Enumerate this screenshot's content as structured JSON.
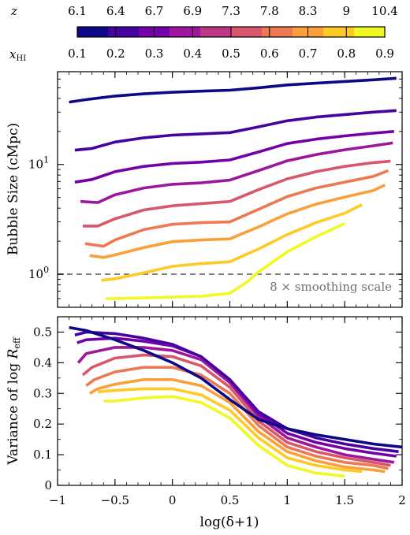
{
  "colorbar": {
    "z_symbol": "z",
    "xhi_symbol": "x",
    "xhi_sub": "HI",
    "z_ticks": [
      "6.1",
      "6.4",
      "6.7",
      "6.9",
      "7.3",
      "7.8",
      "8.3",
      "9",
      "10.4"
    ],
    "xhi_ticks": [
      "0.1",
      "0.2",
      "0.3",
      "0.4",
      "0.5",
      "0.6",
      "0.7",
      "0.8",
      "0.9"
    ],
    "colors": [
      "#0d0887",
      "#46039f",
      "#7201a8",
      "#9c179e",
      "#bd3786",
      "#d8576b",
      "#ed7953",
      "#fb9f3a",
      "#fdca26",
      "#f0f921"
    ]
  },
  "chart_data": [
    {
      "type": "line",
      "panel": "top",
      "ylabel": "Bubble Size (cMpc)",
      "yscale": "log",
      "ylim": [
        0.5,
        70
      ],
      "xlim": [
        -1,
        2
      ],
      "y_ticks": [
        {
          "base": "10",
          "exp": "0",
          "value": 1
        },
        {
          "base": "10",
          "exp": "1",
          "value": 10
        }
      ],
      "reference_line": {
        "y": 1.0,
        "style": "dashed",
        "color": "#808080",
        "label": "8 × smoothing scale"
      },
      "series": [
        {
          "xhi": 0.1,
          "z": "6.1",
          "x": [
            -0.9,
            -0.75,
            -0.5,
            -0.25,
            0,
            0.25,
            0.5,
            0.75,
            1.0,
            1.25,
            1.5,
            1.75,
            1.95
          ],
          "y": [
            37,
            39,
            42,
            44,
            45.5,
            46.5,
            47.5,
            50,
            53,
            55,
            57,
            59,
            61
          ]
        },
        {
          "xhi": 0.2,
          "z": "6.4",
          "x": [
            -0.85,
            -0.7,
            -0.5,
            -0.25,
            0,
            0.25,
            0.5,
            0.75,
            1.0,
            1.25,
            1.5,
            1.75,
            1.95
          ],
          "y": [
            13.5,
            14,
            16,
            17.5,
            18.5,
            19,
            19.5,
            22,
            25,
            27,
            28.5,
            30,
            31
          ]
        },
        {
          "xhi": 0.3,
          "z": "6.7",
          "x": [
            -0.85,
            -0.7,
            -0.5,
            -0.25,
            0,
            0.25,
            0.5,
            0.75,
            1.0,
            1.25,
            1.5,
            1.75,
            1.93
          ],
          "y": [
            6.9,
            7.3,
            8.6,
            9.6,
            10.2,
            10.5,
            11,
            13,
            15.5,
            17,
            18.2,
            19.3,
            20
          ]
        },
        {
          "xhi": 0.4,
          "z": "6.9",
          "x": [
            -0.8,
            -0.65,
            -0.5,
            -0.25,
            0,
            0.25,
            0.5,
            0.75,
            1.0,
            1.25,
            1.5,
            1.75,
            1.92
          ],
          "y": [
            4.6,
            4.5,
            5.3,
            6.1,
            6.6,
            6.8,
            7.2,
            8.8,
            10.8,
            12.3,
            13.6,
            14.8,
            15.7
          ]
        },
        {
          "xhi": 0.5,
          "z": "7.3",
          "x": [
            -0.78,
            -0.65,
            -0.5,
            -0.25,
            0,
            0.25,
            0.5,
            0.75,
            1.0,
            1.25,
            1.5,
            1.75,
            1.9
          ],
          "y": [
            2.75,
            2.75,
            3.2,
            3.85,
            4.2,
            4.4,
            4.6,
            5.9,
            7.4,
            8.6,
            9.6,
            10.4,
            10.7
          ]
        },
        {
          "xhi": 0.6,
          "z": "7.8",
          "x": [
            -0.76,
            -0.6,
            -0.5,
            -0.25,
            0,
            0.25,
            0.5,
            0.75,
            1.0,
            1.25,
            1.5,
            1.75,
            1.88
          ],
          "y": [
            1.9,
            1.8,
            2.05,
            2.55,
            2.85,
            2.95,
            3.0,
            3.9,
            5.1,
            6.1,
            6.9,
            7.8,
            8.8
          ]
        },
        {
          "xhi": 0.7,
          "z": "8.3",
          "x": [
            -0.72,
            -0.6,
            -0.5,
            -0.25,
            0,
            0.25,
            0.5,
            0.75,
            1.0,
            1.25,
            1.5,
            1.75,
            1.85
          ],
          "y": [
            1.48,
            1.42,
            1.5,
            1.75,
            1.98,
            2.05,
            2.1,
            2.7,
            3.55,
            4.35,
            5.05,
            5.8,
            6.5
          ]
        },
        {
          "xhi": 0.8,
          "z": "9",
          "x": [
            -0.62,
            -0.5,
            -0.25,
            0,
            0.25,
            0.5,
            0.75,
            1.0,
            1.25,
            1.5,
            1.65
          ],
          "y": [
            0.88,
            0.91,
            1.03,
            1.18,
            1.25,
            1.3,
            1.7,
            2.3,
            2.95,
            3.6,
            4.3
          ]
        },
        {
          "xhi": 0.9,
          "z": "10.4",
          "x": [
            -0.58,
            -0.5,
            -0.25,
            0,
            0.25,
            0.5,
            0.65,
            0.75,
            1.0,
            1.25,
            1.5
          ],
          "y": [
            0.6,
            0.6,
            0.61,
            0.62,
            0.63,
            0.67,
            0.85,
            1.05,
            1.6,
            2.2,
            2.9
          ]
        }
      ]
    },
    {
      "type": "line",
      "panel": "bottom",
      "ylabel_prefix": "Variance of log",
      "ylabel_symbol": "R",
      "ylabel_sub": "eff",
      "xlabel": "log(δ+1)",
      "ylim": [
        0,
        0.55
      ],
      "xlim": [
        -1,
        2
      ],
      "y_ticks": [
        "0",
        "0.1",
        "0.2",
        "0.3",
        "0.4",
        "0.5"
      ],
      "x_ticks": [
        "−1",
        "−0.5",
        "0",
        "0.5",
        "1",
        "1.5",
        "2"
      ],
      "series": [
        {
          "xhi": 0.1,
          "z": "6.1",
          "x": [
            -0.9,
            -0.75,
            -0.5,
            -0.25,
            0,
            0.25,
            0.5,
            0.75,
            1.0,
            1.25,
            1.5,
            1.75,
            2.0
          ],
          "y": [
            0.515,
            0.505,
            0.475,
            0.44,
            0.4,
            0.35,
            0.28,
            0.215,
            0.185,
            0.165,
            0.15,
            0.135,
            0.125
          ]
        },
        {
          "xhi": 0.2,
          "z": "6.4",
          "x": [
            -0.85,
            -0.75,
            -0.5,
            -0.25,
            0,
            0.25,
            0.5,
            0.75,
            1.0,
            1.25,
            1.5,
            1.75,
            1.97
          ],
          "y": [
            0.49,
            0.5,
            0.495,
            0.48,
            0.46,
            0.42,
            0.345,
            0.24,
            0.185,
            0.155,
            0.135,
            0.12,
            0.11
          ]
        },
        {
          "xhi": 0.3,
          "z": "6.7",
          "x": [
            -0.83,
            -0.75,
            -0.5,
            -0.25,
            0,
            0.25,
            0.5,
            0.75,
            1.0,
            1.25,
            1.5,
            1.75,
            1.95
          ],
          "y": [
            0.465,
            0.475,
            0.48,
            0.47,
            0.455,
            0.42,
            0.345,
            0.235,
            0.17,
            0.14,
            0.12,
            0.105,
            0.095
          ]
        },
        {
          "xhi": 0.4,
          "z": "6.9",
          "x": [
            -0.82,
            -0.75,
            -0.5,
            -0.25,
            0,
            0.25,
            0.5,
            0.75,
            1.0,
            1.25,
            1.5,
            1.75,
            1.93
          ],
          "y": [
            0.4,
            0.43,
            0.45,
            0.45,
            0.44,
            0.41,
            0.335,
            0.225,
            0.155,
            0.125,
            0.1,
            0.085,
            0.075
          ]
        },
        {
          "xhi": 0.5,
          "z": "7.3",
          "x": [
            -0.78,
            -0.7,
            -0.5,
            -0.25,
            0,
            0.25,
            0.5,
            0.75,
            1.0,
            1.25,
            1.5,
            1.75,
            1.9
          ],
          "y": [
            0.36,
            0.385,
            0.415,
            0.425,
            0.42,
            0.39,
            0.32,
            0.21,
            0.14,
            0.11,
            0.09,
            0.075,
            0.065
          ]
        },
        {
          "xhi": 0.6,
          "z": "7.8",
          "x": [
            -0.75,
            -0.68,
            -0.5,
            -0.25,
            0,
            0.25,
            0.5,
            0.75,
            1.0,
            1.25,
            1.5,
            1.75,
            1.88
          ],
          "y": [
            0.325,
            0.345,
            0.37,
            0.385,
            0.385,
            0.36,
            0.3,
            0.195,
            0.125,
            0.095,
            0.075,
            0.065,
            0.055
          ]
        },
        {
          "xhi": 0.7,
          "z": "8.3",
          "x": [
            -0.72,
            -0.65,
            -0.5,
            -0.25,
            0,
            0.25,
            0.5,
            0.75,
            1.0,
            1.25,
            1.5,
            1.75,
            1.85
          ],
          "y": [
            0.3,
            0.315,
            0.33,
            0.345,
            0.345,
            0.325,
            0.27,
            0.175,
            0.11,
            0.08,
            0.06,
            0.05,
            0.045
          ]
        },
        {
          "xhi": 0.8,
          "z": "9",
          "x": [
            -0.65,
            -0.5,
            -0.25,
            0,
            0.25,
            0.5,
            0.75,
            1.0,
            1.25,
            1.5,
            1.65
          ],
          "y": [
            0.305,
            0.31,
            0.315,
            0.315,
            0.295,
            0.245,
            0.155,
            0.09,
            0.065,
            0.05,
            0.045
          ]
        },
        {
          "xhi": 0.9,
          "z": "10.4",
          "x": [
            -0.6,
            -0.5,
            -0.25,
            0,
            0.25,
            0.5,
            0.75,
            1.0,
            1.25,
            1.5
          ],
          "y": [
            0.275,
            0.275,
            0.285,
            0.29,
            0.27,
            0.22,
            0.13,
            0.065,
            0.04,
            0.03
          ]
        }
      ]
    }
  ]
}
